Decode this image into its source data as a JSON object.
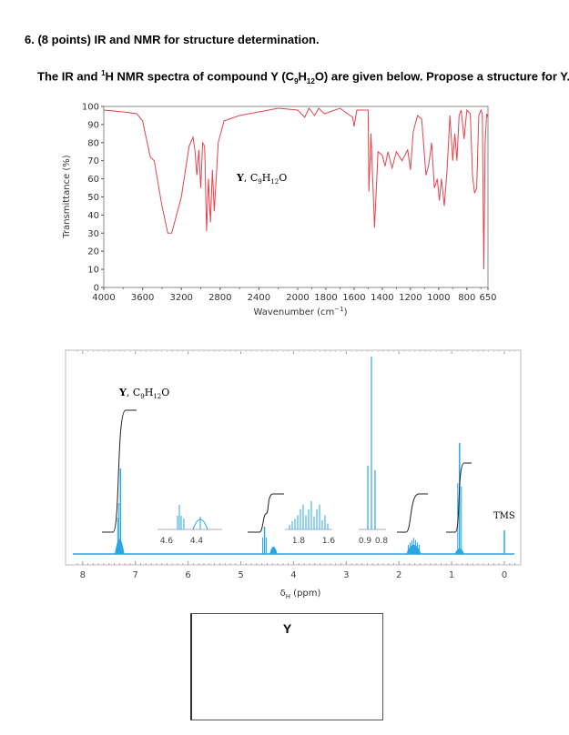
{
  "question": {
    "number_and_points": "6. (8 points) IR and NMR for structure determination.",
    "prompt_part1": "The IR and ",
    "prompt_sup": "1",
    "prompt_part2": "H NMR spectra of compound Y (C",
    "prompt_sub1": "9",
    "prompt_part3": "H",
    "prompt_sub2": "12",
    "prompt_part4": "O) are given below. Propose a structure for Y."
  },
  "answer_box": {
    "label": "Y"
  },
  "chart_data": [
    {
      "type": "line",
      "title": "IR spectrum",
      "annotation": "Y, C9H12O",
      "xlabel": "Wavenumber (cm-1)",
      "ylabel": "Transmittance (%)",
      "xlim": [
        4000,
        650
      ],
      "ylim": [
        0,
        100
      ],
      "x_ticks": [
        "4000",
        "3600",
        "3200",
        "2800",
        "2400",
        "2000",
        "1800",
        "1600",
        "1400",
        "1200",
        "1000",
        "800",
        "650"
      ],
      "y_ticks": [
        "0",
        "10",
        "20",
        "30",
        "40",
        "50",
        "60",
        "70",
        "80",
        "90",
        "100"
      ],
      "color": "#e0454f",
      "grid": false,
      "points": [
        [
          4000,
          98
        ],
        [
          3800,
          97
        ],
        [
          3660,
          96
        ],
        [
          3600,
          92
        ],
        [
          3520,
          72
        ],
        [
          3480,
          70
        ],
        [
          3400,
          45
        ],
        [
          3340,
          30
        ],
        [
          3300,
          30
        ],
        [
          3200,
          50
        ],
        [
          3120,
          78
        ],
        [
          3080,
          83
        ],
        [
          3060,
          76
        ],
        [
          3040,
          62
        ],
        [
          3020,
          76
        ],
        [
          3000,
          55
        ],
        [
          2980,
          80
        ],
        [
          2960,
          78
        ],
        [
          2940,
          31
        ],
        [
          2920,
          60
        ],
        [
          2900,
          36
        ],
        [
          2880,
          65
        ],
        [
          2860,
          42
        ],
        [
          2820,
          80
        ],
        [
          2760,
          92
        ],
        [
          2600,
          95
        ],
        [
          2400,
          97
        ],
        [
          2200,
          99
        ],
        [
          2000,
          98
        ],
        [
          1950,
          94
        ],
        [
          1920,
          99
        ],
        [
          1880,
          95
        ],
        [
          1850,
          99
        ],
        [
          1810,
          96
        ],
        [
          1700,
          99
        ],
        [
          1610,
          94
        ],
        [
          1600,
          89
        ],
        [
          1580,
          98
        ],
        [
          1500,
          98
        ],
        [
          1495,
          53
        ],
        [
          1480,
          85
        ],
        [
          1455,
          33
        ],
        [
          1430,
          75
        ],
        [
          1400,
          73
        ],
        [
          1380,
          67
        ],
        [
          1360,
          75
        ],
        [
          1330,
          66
        ],
        [
          1300,
          75
        ],
        [
          1260,
          70
        ],
        [
          1220,
          76
        ],
        [
          1200,
          65
        ],
        [
          1180,
          86
        ],
        [
          1150,
          95
        ],
        [
          1120,
          93
        ],
        [
          1090,
          62
        ],
        [
          1070,
          68
        ],
        [
          1050,
          80
        ],
        [
          1030,
          55
        ],
        [
          1010,
          60
        ],
        [
          995,
          48
        ],
        [
          980,
          60
        ],
        [
          960,
          45
        ],
        [
          940,
          65
        ],
        [
          920,
          95
        ],
        [
          900,
          70
        ],
        [
          885,
          85
        ],
        [
          870,
          70
        ],
        [
          855,
          95
        ],
        [
          840,
          98
        ],
        [
          820,
          82
        ],
        [
          800,
          98
        ],
        [
          775,
          96
        ],
        [
          760,
          62
        ],
        [
          745,
          52
        ],
        [
          730,
          55
        ],
        [
          715,
          95
        ],
        [
          700,
          98
        ],
        [
          690,
          96
        ],
        [
          680,
          10
        ],
        [
          670,
          80
        ],
        [
          660,
          96
        ],
        [
          650,
          94
        ]
      ]
    },
    {
      "type": "line",
      "title": "1H NMR spectrum",
      "annotation": "Y, C9H12O",
      "xlabel": "δH (ppm)",
      "xlim": [
        8.2,
        -0.2
      ],
      "x_ticks": [
        "8",
        "7",
        "6",
        "5",
        "4",
        "3",
        "2",
        "1",
        "0"
      ],
      "color": "#29a7e0",
      "reference_label": "TMS",
      "peaks": [
        {
          "shift": 7.3,
          "multiplicity": "multiplet",
          "height": 0.44,
          "integral_height": 0.62
        },
        {
          "shift": 4.55,
          "multiplicity": "triplet",
          "height": 0.16,
          "integral_height": 0.13
        },
        {
          "shift": 4.4,
          "multiplicity": "broad singlet",
          "height": 0.07,
          "integral_height": 0.06
        },
        {
          "shift": 1.75,
          "multiplicity": "multiplet",
          "height": 0.1,
          "integral_height": 0.2
        },
        {
          "shift": 0.85,
          "multiplicity": "triplet",
          "height": 0.56,
          "integral_height": 0.3
        },
        {
          "shift": 0.0,
          "multiplicity": "singlet",
          "height": 0.14,
          "label": "TMS"
        }
      ],
      "insets": [
        {
          "range": "4.6 – 4.4",
          "ticks": [
            "4.6",
            "4.4"
          ],
          "description": "triplet at ~4.52, broad singlet at ~4.37"
        },
        {
          "range": "1.8 – 1.6",
          "ticks": [
            "1.8",
            "1.6"
          ],
          "description": "complex multiplet ~1.7"
        },
        {
          "range": "0.9 – 0.8",
          "ticks": [
            "0.9",
            "0.8"
          ],
          "description": "triplet ~0.86"
        }
      ]
    }
  ],
  "ir": {
    "compound_label_bold": "Y",
    "compound_label_rest": ", C",
    "sub9": "9",
    "H": "H",
    "sub12": "12",
    "O": "O",
    "ylabel": "Transmittance (%)",
    "xlabel_main": "Wavenumber (cm",
    "xlabel_sup": "−1",
    "xlabel_end": ")"
  },
  "nmr": {
    "compound_label_bold": "Y",
    "compound_label_rest": ", C",
    "sub9": "9",
    "H": "H",
    "sub12": "12",
    "O": "O",
    "tms": "TMS",
    "xlabel_delta": "δ",
    "xlabel_sub": "H",
    "xlabel_rest": " (ppm)",
    "inset1_ticks": [
      "4.6",
      "4.4"
    ],
    "inset2_ticks": [
      "1.8",
      "1.6"
    ],
    "inset3_ticks": [
      "0.9",
      "0.8"
    ]
  }
}
